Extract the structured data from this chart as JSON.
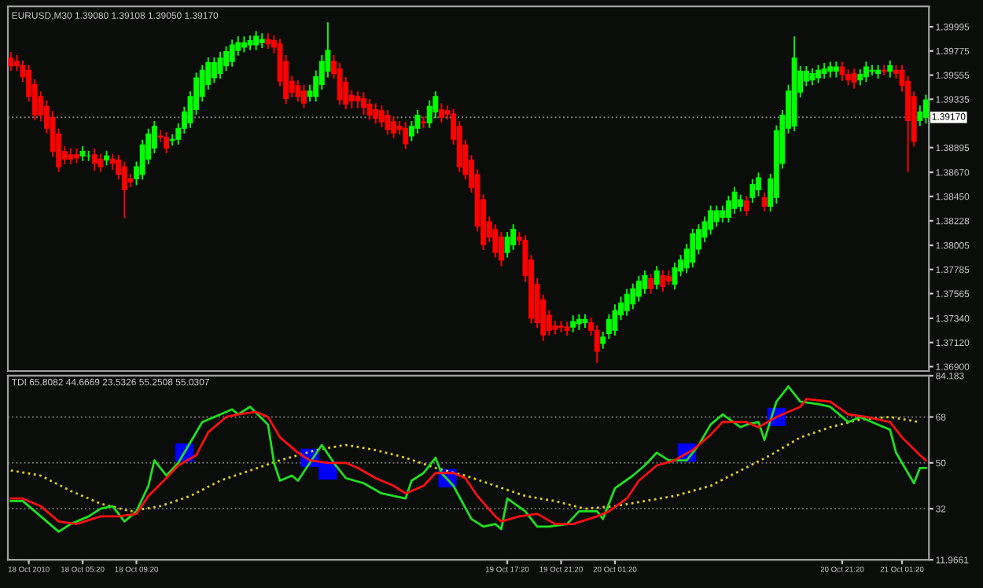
{
  "chart_data": [
    {
      "type": "candlestick",
      "title": "EURUSD,M30 1.39080 1.39108 1.39050 1.39170",
      "tick_labels": "y",
      "ohlc": [
        [
          1.3971,
          1.3976,
          1.396,
          1.3964
        ],
        [
          1.3968,
          1.3973,
          1.396,
          1.3964
        ],
        [
          1.3964,
          1.3968,
          1.395,
          1.3954
        ],
        [
          1.396,
          1.3964,
          1.3932,
          1.3936
        ],
        [
          1.3947,
          1.3951,
          1.3915,
          1.3919
        ],
        [
          1.3936,
          1.394,
          1.3914,
          1.3919
        ],
        [
          1.3927,
          1.3932,
          1.3903,
          1.3907
        ],
        [
          1.3917,
          1.3922,
          1.3882,
          1.3886
        ],
        [
          1.3902,
          1.3906,
          1.3868,
          1.3872
        ],
        [
          1.3886,
          1.389,
          1.3875,
          1.3879
        ],
        [
          1.3883,
          1.3888,
          1.3875,
          1.3879
        ],
        [
          1.3883,
          1.3888,
          1.3876,
          1.388
        ],
        [
          1.3882,
          1.389,
          1.3878,
          1.3886
        ],
        [
          1.3882,
          1.3886,
          1.3878,
          1.3882
        ],
        [
          1.3883,
          1.3888,
          1.3869,
          1.3875
        ],
        [
          1.3879,
          1.3883,
          1.3868,
          1.3872
        ],
        [
          1.3878,
          1.3886,
          1.3874,
          1.3882
        ],
        [
          1.3879,
          1.3883,
          1.387,
          1.3875
        ],
        [
          1.3878,
          1.3882,
          1.3861,
          1.3865
        ],
        [
          1.3872,
          1.3876,
          1.3826,
          1.3851
        ],
        [
          1.3861,
          1.3865,
          1.3854,
          1.3858
        ],
        [
          1.3861,
          1.3876,
          1.3856,
          1.3872
        ],
        [
          1.3865,
          1.3896,
          1.3861,
          1.3892
        ],
        [
          1.3879,
          1.3906,
          1.3875,
          1.3902
        ],
        [
          1.3889,
          1.3913,
          1.3885,
          1.3909
        ],
        [
          1.39,
          1.3905,
          1.3895,
          1.3899
        ],
        [
          1.3899,
          1.3903,
          1.3885,
          1.3889
        ],
        [
          1.3896,
          1.3901,
          1.3892,
          1.3897
        ],
        [
          1.3897,
          1.3911,
          1.3893,
          1.3907
        ],
        [
          1.3907,
          1.3926,
          1.3903,
          1.3922
        ],
        [
          1.3912,
          1.394,
          1.3908,
          1.3936
        ],
        [
          1.3924,
          1.3957,
          1.392,
          1.3953
        ],
        [
          1.3936,
          1.3964,
          1.3932,
          1.396
        ],
        [
          1.3947,
          1.3971,
          1.3943,
          1.3967
        ],
        [
          1.3953,
          1.3971,
          1.3949,
          1.3967
        ],
        [
          1.3957,
          1.3976,
          1.3953,
          1.3971
        ],
        [
          1.3964,
          1.3981,
          1.396,
          1.3977
        ],
        [
          1.3968,
          1.3987,
          1.3964,
          1.3983
        ],
        [
          1.3978,
          1.399,
          1.3974,
          1.3985
        ],
        [
          1.3981,
          1.399,
          1.3977,
          1.3985
        ],
        [
          1.3983,
          1.3991,
          1.3979,
          1.3987
        ],
        [
          1.3983,
          1.3995,
          1.3979,
          1.3991
        ],
        [
          1.3985,
          1.3993,
          1.3981,
          1.3988
        ],
        [
          1.3988,
          1.3993,
          1.398,
          1.3984
        ],
        [
          1.3987,
          1.3991,
          1.3976,
          1.3981
        ],
        [
          1.3984,
          1.3988,
          1.3946,
          1.395
        ],
        [
          1.3968,
          1.3973,
          1.393,
          1.3934
        ],
        [
          1.395,
          1.3954,
          1.3936,
          1.394
        ],
        [
          1.3946,
          1.395,
          1.3932,
          1.3936
        ],
        [
          1.3941,
          1.3946,
          1.3926,
          1.393
        ],
        [
          1.3936,
          1.3946,
          1.3932,
          1.3941
        ],
        [
          1.3936,
          1.3959,
          1.3932,
          1.3954
        ],
        [
          1.3947,
          1.3973,
          1.3943,
          1.3968
        ],
        [
          1.3959,
          1.4003,
          1.3954,
          1.3978
        ],
        [
          1.3968,
          1.3973,
          1.3953,
          1.3957
        ],
        [
          1.3961,
          1.3966,
          1.3929,
          1.3933
        ],
        [
          1.3949,
          1.3953,
          1.3925,
          1.3929
        ],
        [
          1.3937,
          1.3941,
          1.3926,
          1.3932
        ],
        [
          1.3936,
          1.394,
          1.3926,
          1.3932
        ],
        [
          1.3934,
          1.3939,
          1.392,
          1.3926
        ],
        [
          1.3929,
          1.3933,
          1.3915,
          1.3919
        ],
        [
          1.3924,
          1.3929,
          1.3912,
          1.3916
        ],
        [
          1.3923,
          1.3927,
          1.3909,
          1.3913
        ],
        [
          1.3919,
          1.3923,
          1.3902,
          1.3906
        ],
        [
          1.3913,
          1.3917,
          1.3899,
          1.3903
        ],
        [
          1.3909,
          1.3913,
          1.3902,
          1.3906
        ],
        [
          1.3907,
          1.3912,
          1.3889,
          1.3893
        ],
        [
          1.39,
          1.3913,
          1.3896,
          1.3909
        ],
        [
          1.3907,
          1.3923,
          1.3903,
          1.3919
        ],
        [
          1.3913,
          1.3917,
          1.3908,
          1.3912
        ],
        [
          1.3912,
          1.3932,
          1.3908,
          1.3927
        ],
        [
          1.3922,
          1.394,
          1.3917,
          1.3936
        ],
        [
          1.3924,
          1.3929,
          1.3913,
          1.3917
        ],
        [
          1.3923,
          1.3927,
          1.3916,
          1.392
        ],
        [
          1.392,
          1.3924,
          1.3893,
          1.3897
        ],
        [
          1.3909,
          1.3913,
          1.3868,
          1.3872
        ],
        [
          1.3892,
          1.3896,
          1.3861,
          1.3865
        ],
        [
          1.3878,
          1.3882,
          1.3849,
          1.3853
        ],
        [
          1.3865,
          1.3869,
          1.3814,
          1.3818
        ],
        [
          1.3842,
          1.3846,
          1.3797,
          1.3801
        ],
        [
          1.3822,
          1.3826,
          1.3804,
          1.3808
        ],
        [
          1.3815,
          1.3819,
          1.379,
          1.3794
        ],
        [
          1.3808,
          1.3812,
          1.3782,
          1.3787
        ],
        [
          1.3794,
          1.3812,
          1.379,
          1.3808
        ],
        [
          1.3801,
          1.3819,
          1.3797,
          1.3815
        ],
        [
          1.3808,
          1.3812,
          1.3801,
          1.3805
        ],
        [
          1.3805,
          1.3809,
          1.3768,
          1.3773
        ],
        [
          1.3787,
          1.3791,
          1.373,
          1.3734
        ],
        [
          1.3765,
          1.377,
          1.3726,
          1.373
        ],
        [
          1.3751,
          1.3755,
          1.3714,
          1.3719
        ],
        [
          1.3737,
          1.3741,
          1.3719,
          1.3723
        ],
        [
          1.3727,
          1.3731,
          1.372,
          1.3724
        ],
        [
          1.3727,
          1.3731,
          1.3722,
          1.3726
        ],
        [
          1.3726,
          1.373,
          1.3719,
          1.3723
        ],
        [
          1.3726,
          1.3736,
          1.3722,
          1.3731
        ],
        [
          1.3729,
          1.3737,
          1.3724,
          1.3733
        ],
        [
          1.373,
          1.3737,
          1.3726,
          1.3733
        ],
        [
          1.373,
          1.3734,
          1.3719,
          1.3723
        ],
        [
          1.3723,
          1.3727,
          1.3694,
          1.3704
        ],
        [
          1.3711,
          1.3721,
          1.3707,
          1.3717
        ],
        [
          1.372,
          1.3737,
          1.3716,
          1.3733
        ],
        [
          1.3723,
          1.3746,
          1.3719,
          1.3741
        ],
        [
          1.3737,
          1.3753,
          1.3733,
          1.3748
        ],
        [
          1.3741,
          1.376,
          1.3737,
          1.3756
        ],
        [
          1.3747,
          1.3765,
          1.3743,
          1.3761
        ],
        [
          1.3754,
          1.3772,
          1.375,
          1.3768
        ],
        [
          1.3761,
          1.3777,
          1.3757,
          1.3773
        ],
        [
          1.377,
          1.3774,
          1.3757,
          1.3761
        ],
        [
          1.3765,
          1.3781,
          1.3761,
          1.3777
        ],
        [
          1.3773,
          1.3777,
          1.3759,
          1.3763
        ],
        [
          1.3772,
          1.3777,
          1.3765,
          1.3768
        ],
        [
          1.3765,
          1.3784,
          1.3761,
          1.378
        ],
        [
          1.3777,
          1.3791,
          1.3773,
          1.3787
        ],
        [
          1.378,
          1.3801,
          1.3776,
          1.3797
        ],
        [
          1.3785,
          1.3815,
          1.3781,
          1.3811
        ],
        [
          1.3797,
          1.3819,
          1.3793,
          1.3815
        ],
        [
          1.3808,
          1.3826,
          1.3804,
          1.3822
        ],
        [
          1.3815,
          1.3836,
          1.3811,
          1.3832
        ],
        [
          1.3822,
          1.3836,
          1.3818,
          1.3832
        ],
        [
          1.3826,
          1.3836,
          1.3822,
          1.3832
        ],
        [
          1.3826,
          1.3845,
          1.3822,
          1.3841
        ],
        [
          1.3834,
          1.3853,
          1.383,
          1.3849
        ],
        [
          1.3836,
          1.3846,
          1.3832,
          1.3842
        ],
        [
          1.3841,
          1.3845,
          1.3828,
          1.3832
        ],
        [
          1.3844,
          1.386,
          1.384,
          1.3856
        ],
        [
          1.3851,
          1.3866,
          1.3846,
          1.3862
        ],
        [
          1.3844,
          1.3848,
          1.3832,
          1.3836
        ],
        [
          1.3836,
          1.3865,
          1.3832,
          1.3861
        ],
        [
          1.3844,
          1.3909,
          1.3839,
          1.3905
        ],
        [
          1.3875,
          1.3923,
          1.3871,
          1.3919
        ],
        [
          1.3907,
          1.3946,
          1.3903,
          1.3941
        ],
        [
          1.3909,
          1.399,
          1.3905,
          1.3971
        ],
        [
          1.394,
          1.3963,
          1.3936,
          1.3959
        ],
        [
          1.395,
          1.3963,
          1.3946,
          1.3959
        ],
        [
          1.3951,
          1.3961,
          1.3947,
          1.3957
        ],
        [
          1.3953,
          1.3964,
          1.3949,
          1.396
        ],
        [
          1.3957,
          1.3966,
          1.3953,
          1.3961
        ],
        [
          1.3959,
          1.3967,
          1.3954,
          1.3963
        ],
        [
          1.3959,
          1.3967,
          1.3954,
          1.3963
        ],
        [
          1.3963,
          1.3967,
          1.3951,
          1.3956
        ],
        [
          1.3956,
          1.396,
          1.3947,
          1.3951
        ],
        [
          1.3957,
          1.3961,
          1.3944,
          1.3949
        ],
        [
          1.3951,
          1.396,
          1.3947,
          1.3956
        ],
        [
          1.3954,
          1.3967,
          1.395,
          1.3963
        ],
        [
          1.3959,
          1.3964,
          1.3956,
          1.396
        ],
        [
          1.3957,
          1.3964,
          1.3953,
          1.396
        ],
        [
          1.396,
          1.3964,
          1.3956,
          1.3959
        ],
        [
          1.3959,
          1.3968,
          1.3954,
          1.3964
        ],
        [
          1.396,
          1.3964,
          1.3953,
          1.3957
        ],
        [
          1.396,
          1.3964,
          1.3941,
          1.3946
        ],
        [
          1.395,
          1.3954,
          1.3868,
          1.3914
        ],
        [
          1.3936,
          1.394,
          1.3891,
          1.3895
        ],
        [
          1.3914,
          1.3927,
          1.391,
          1.3922
        ],
        [
          1.3917,
          1.3937,
          1.3912,
          1.3933
        ]
      ],
      "colors": [
        "#ff0000",
        "#ff0000",
        "#ff0000",
        "#ff0000",
        "#ff0000",
        "#ff0000",
        "#ff0000",
        "#ff0000",
        "#ff0000",
        "#ff0000",
        "#ff0000",
        "#ff0000",
        "#00ff00",
        "#00ff00",
        "#ff0000",
        "#ff0000",
        "#00ff00",
        "#ff0000",
        "#ff0000",
        "#ff0000",
        "#ff0000",
        "#00ff00",
        "#00ff00",
        "#00ff00",
        "#00ff00",
        "#ff0000",
        "#ff0000",
        "#00ff00",
        "#00ff00",
        "#00ff00",
        "#00ff00",
        "#00ff00",
        "#00ff00",
        "#00ff00",
        "#00ff00",
        "#00ff00",
        "#00ff00",
        "#00ff00",
        "#00ff00",
        "#00ff00",
        "#00ff00",
        "#00ff00",
        "#00ff00",
        "#ff0000",
        "#ff0000",
        "#ff0000",
        "#ff0000",
        "#ff0000",
        "#ff0000",
        "#ff0000",
        "#00ff00",
        "#00ff00",
        "#00ff00",
        "#00ff00",
        "#ff0000",
        "#ff0000",
        "#ff0000",
        "#ff0000",
        "#ff0000",
        "#ff0000",
        "#ff0000",
        "#ff0000",
        "#ff0000",
        "#ff0000",
        "#ff0000",
        "#ff0000",
        "#ff0000",
        "#00ff00",
        "#00ff00",
        "#ff0000",
        "#00ff00",
        "#00ff00",
        "#ff0000",
        "#ff0000",
        "#ff0000",
        "#ff0000",
        "#ff0000",
        "#ff0000",
        "#ff0000",
        "#ff0000",
        "#ff0000",
        "#ff0000",
        "#ff0000",
        "#00ff00",
        "#00ff00",
        "#ff0000",
        "#ff0000",
        "#ff0000",
        "#ff0000",
        "#ff0000",
        "#ff0000",
        "#ff0000",
        "#ff0000",
        "#ff0000",
        "#00ff00",
        "#00ff00",
        "#00ff00",
        "#ff0000",
        "#ff0000",
        "#00ff00",
        "#00ff00",
        "#00ff00",
        "#00ff00",
        "#00ff00",
        "#00ff00",
        "#00ff00",
        "#00ff00",
        "#ff0000",
        "#00ff00",
        "#ff0000",
        "#ff0000",
        "#00ff00",
        "#00ff00",
        "#00ff00",
        "#00ff00",
        "#00ff00",
        "#00ff00",
        "#00ff00",
        "#00ff00",
        "#00ff00",
        "#00ff00",
        "#00ff00",
        "#00ff00",
        "#ff0000",
        "#00ff00",
        "#00ff00",
        "#ff0000",
        "#00ff00",
        "#00ff00",
        "#00ff00",
        "#00ff00",
        "#00ff00",
        "#00ff00",
        "#00ff00",
        "#00ff00",
        "#00ff00",
        "#00ff00",
        "#00ff00",
        "#00ff00",
        "#ff0000",
        "#ff0000",
        "#ff0000",
        "#00ff00",
        "#00ff00",
        "#00ff00",
        "#00ff00",
        "#ff0000",
        "#00ff00",
        "#ff0000",
        "#ff0000",
        "#ff0000",
        "#ff0000",
        "#00ff00",
        "#00ff00"
      ],
      "ylim": [
        1.3686,
        1.4018
      ],
      "yticks": [
        {
          "value": 1.369,
          "label": "1.36900"
        },
        {
          "value": 1.3712,
          "label": "1.37120"
        },
        {
          "value": 1.3734,
          "label": "1.37340"
        },
        {
          "value": 1.37565,
          "label": "1.37565"
        },
        {
          "value": 1.37785,
          "label": "1.37785"
        },
        {
          "value": 1.38005,
          "label": "1.38005"
        },
        {
          "value": 1.38228,
          "label": "1.38228"
        },
        {
          "value": 1.3845,
          "label": "1.38450"
        },
        {
          "value": 1.3867,
          "label": "1.38670"
        },
        {
          "value": 1.38895,
          "label": "1.38895"
        },
        {
          "value": 1.39335,
          "label": "1.39335"
        },
        {
          "value": 1.39555,
          "label": "1.39555"
        },
        {
          "value": 1.39775,
          "label": "1.39775"
        },
        {
          "value": 1.39995,
          "label": "1.39995"
        }
      ],
      "ref_lines": [
        {
          "axis": "y",
          "value": 1.3917,
          "label": "1.39170",
          "color": "#808080",
          "line_style": "dotted"
        }
      ]
    },
    {
      "type": "line",
      "title": "TDI 65.8082 44.6669 23.5326 55.2508 55.0307",
      "categories": [
        null,
        null,
        null,
        "18 Oct 2010",
        null,
        null,
        null,
        null,
        null,
        null,
        null,
        null,
        "18 Oct 05:20",
        null,
        null,
        null,
        null,
        null,
        null,
        null,
        null,
        "18 Oct 09:20",
        null,
        null,
        null,
        null,
        null,
        null,
        null,
        null,
        null,
        null,
        null,
        null,
        null,
        null,
        null,
        null,
        null,
        null,
        null,
        null,
        null,
        null,
        null,
        null,
        null,
        null,
        null,
        null,
        null,
        null,
        null,
        null,
        null,
        null,
        null,
        null,
        null,
        null,
        null,
        null,
        null,
        null,
        null,
        null,
        null,
        null,
        null,
        null,
        null,
        null,
        null,
        null,
        null,
        null,
        null,
        null,
        null,
        null,
        null,
        null,
        null,
        "19 Oct 17:20",
        null,
        null,
        null,
        null,
        null,
        null,
        null,
        null,
        "19 Oct 21:20",
        null,
        null,
        null,
        null,
        null,
        null,
        null,
        null,
        "20 Oct 01:20",
        null,
        null,
        null,
        null,
        null,
        null,
        null,
        null,
        null,
        null,
        null,
        null,
        null,
        null,
        null,
        null,
        null,
        null,
        null,
        null,
        null,
        null,
        null,
        null,
        null,
        null,
        null,
        null,
        null,
        null,
        null,
        null,
        null,
        null,
        null,
        null,
        null,
        "20 Oct 21:20",
        null,
        null,
        null,
        null,
        null,
        null,
        null,
        null,
        null,
        "21 Oct 01:20",
        null,
        null,
        null,
        null
      ],
      "ylim": [
        11.9661,
        84.183
      ],
      "yticks": [
        11.9661,
        32,
        50,
        68,
        84.183
      ],
      "series": [
        {
          "type": "line",
          "color": "#e0d020",
          "line_style": "dotted",
          "values": [
            47,
            null,
            null,
            null,
            null,
            45,
            null,
            null,
            null,
            null,
            39,
            null,
            null,
            null,
            null,
            34,
            null,
            null,
            null,
            null,
            31,
            null,
            null,
            null,
            null,
            33,
            null,
            null,
            null,
            null,
            37,
            null,
            null,
            null,
            null,
            43,
            null,
            null,
            null,
            null,
            47,
            null,
            null,
            null,
            null,
            51,
            null,
            null,
            null,
            null,
            null,
            55,
            null,
            null,
            null,
            null,
            57,
            null,
            null,
            null,
            null,
            55,
            null,
            null,
            null,
            null,
            52,
            null,
            null,
            null,
            null,
            48,
            null,
            null,
            null,
            null,
            45,
            null,
            null,
            null,
            null,
            41,
            null,
            null,
            null,
            null,
            37,
            null,
            null,
            null,
            null,
            35,
            null,
            null,
            null,
            null,
            32,
            null,
            null,
            null,
            null,
            33,
            null,
            null,
            null,
            null,
            35,
            null,
            null,
            null,
            null,
            37,
            null,
            null,
            null,
            null,
            null,
            41,
            null,
            null,
            null,
            null,
            47,
            null,
            null,
            null,
            null,
            53,
            null,
            null,
            null,
            null,
            60,
            null,
            null,
            null,
            null,
            64,
            null,
            null,
            null,
            null,
            67,
            null,
            null,
            null,
            null,
            68,
            null,
            null,
            null,
            null,
            66,
            null
          ]
        },
        {
          "type": "line",
          "color": "#20e020",
          "line_style": "solid",
          "values": [
            35,
            null,
            35,
            null,
            null,
            29,
            null,
            null,
            23,
            null,
            26,
            null,
            null,
            29,
            null,
            32,
            null,
            33,
            null,
            27,
            null,
            31,
            null,
            41,
            51,
            null,
            45,
            null,
            50,
            null,
            null,
            null,
            66,
            null,
            68,
            null,
            null,
            71,
            69,
            null,
            72,
            null,
            null,
            65,
            50,
            43,
            null,
            45,
            43,
            null,
            50,
            null,
            57,
            null,
            50,
            null,
            44,
            null,
            null,
            42,
            null,
            null,
            38,
            null,
            null,
            null,
            36,
            43,
            null,
            46,
            null,
            52,
            46,
            null,
            41,
            null,
            null,
            28,
            null,
            25,
            null,
            26,
            24,
            36,
            null,
            null,
            31,
            null,
            25,
            null,
            25,
            null,
            null,
            26,
            null,
            31,
            null,
            null,
            31,
            28,
            null,
            40,
            null,
            null,
            45,
            null,
            49,
            null,
            54,
            null,
            51,
            null,
            null,
            51,
            null,
            57,
            null,
            65,
            null,
            69,
            null,
            null,
            64,
            65,
            null,
            66,
            59,
            null,
            74,
            null,
            80,
            null,
            74,
            null,
            null,
            73,
            null,
            72,
            null,
            null,
            66,
            null,
            68,
            null,
            null,
            65,
            null,
            63,
            54,
            null,
            null,
            42,
            48,
            48
          ]
        },
        {
          "type": "line",
          "color": "#ff1010",
          "line_style": "solid",
          "values": [
            36,
            null,
            36,
            null,
            null,
            33,
            null,
            null,
            27,
            null,
            null,
            26,
            null,
            null,
            null,
            29,
            null,
            null,
            29,
            null,
            null,
            30,
            null,
            37,
            null,
            null,
            44,
            null,
            49,
            null,
            null,
            53,
            null,
            62,
            null,
            null,
            68,
            null,
            69,
            null,
            null,
            70,
            null,
            68,
            null,
            60,
            null,
            null,
            54,
            null,
            51,
            null,
            null,
            50,
            null,
            null,
            50,
            null,
            48,
            null,
            null,
            44,
            null,
            null,
            41,
            null,
            38,
            null,
            null,
            41,
            null,
            46,
            null,
            null,
            46,
            null,
            44,
            null,
            37,
            null,
            null,
            29,
            27,
            null,
            null,
            29,
            null,
            null,
            30,
            null,
            null,
            26,
            null,
            null,
            26,
            null,
            null,
            null,
            29,
            null,
            31,
            null,
            null,
            36,
            null,
            43,
            null,
            null,
            49,
            null,
            null,
            51,
            null,
            null,
            55,
            null,
            null,
            61,
            null,
            66,
            null,
            null,
            null,
            66,
            null,
            64,
            null,
            null,
            68,
            null,
            null,
            null,
            72,
            75,
            null,
            null,
            null,
            74,
            null,
            null,
            69,
            null,
            null,
            68,
            null,
            null,
            null,
            66,
            null,
            60,
            null,
            null,
            53,
            51
          ]
        },
        {
          "type": "scatter",
          "color": "#0000ff",
          "marker": "square",
          "values": [
            null,
            null,
            null,
            null,
            null,
            null,
            null,
            null,
            null,
            null,
            null,
            null,
            null,
            null,
            null,
            null,
            null,
            null,
            null,
            null,
            null,
            null,
            null,
            null,
            null,
            null,
            null,
            null,
            null,
            54,
            null,
            null,
            null,
            null,
            null,
            null,
            null,
            null,
            null,
            null,
            null,
            null,
            null,
            null,
            null,
            null,
            null,
            null,
            null,
            null,
            52,
            null,
            null,
            47,
            null,
            null,
            null,
            null,
            null,
            null,
            null,
            null,
            null,
            null,
            null,
            null,
            null,
            null,
            null,
            null,
            null,
            null,
            null,
            44,
            null,
            null,
            null,
            null,
            null,
            null,
            null,
            null,
            null,
            null,
            null,
            null,
            null,
            null,
            null,
            null,
            null,
            null,
            null,
            null,
            null,
            null,
            null,
            null,
            null,
            null,
            null,
            null,
            null,
            null,
            null,
            null,
            null,
            null,
            null,
            null,
            null,
            null,
            null,
            54,
            null,
            null,
            null,
            null,
            null,
            null,
            null,
            null,
            null,
            null,
            null,
            null,
            null,
            null,
            68,
            null,
            null,
            null,
            null,
            null,
            null,
            null,
            null,
            null,
            null,
            null,
            null,
            null,
            null,
            null,
            null,
            null,
            null,
            null,
            null,
            null,
            null,
            null,
            null,
            null
          ]
        }
      ],
      "ref_lines": [
        {
          "axis": "y",
          "value": 68,
          "color": "#707070",
          "line_style": "dotted"
        },
        {
          "axis": "y",
          "value": 50,
          "color": "#707070",
          "line_style": "dotted"
        },
        {
          "axis": "y",
          "value": 32,
          "color": "#707070",
          "line_style": "dotted"
        }
      ]
    }
  ]
}
